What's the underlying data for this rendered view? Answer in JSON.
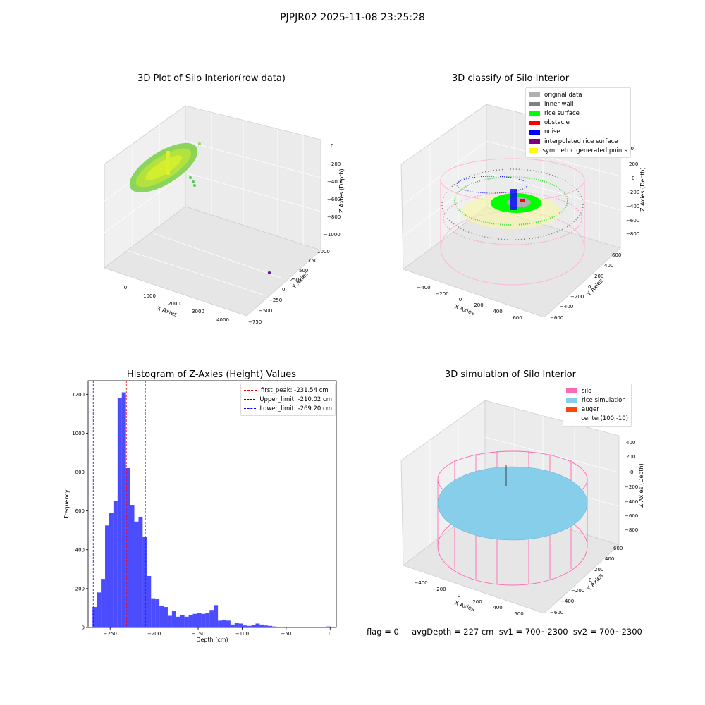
{
  "suptitle": "PJPJR02 2025-11-08 23:25:28",
  "plots": {
    "raw": {
      "title": "3D Plot of Silo Interior(row data)",
      "xlabel": "X Axies",
      "ylabel": "Y Axies",
      "zlabel": "Z Axies (Depth)",
      "xticks": [
        "0",
        "1000",
        "2000",
        "3000",
        "4000"
      ],
      "yticks": [
        "1000",
        "750",
        "500",
        "250",
        "0",
        "−250",
        "−500",
        "−750"
      ],
      "zticks": [
        "0",
        "−200",
        "−400",
        "−600",
        "−800",
        "−1000"
      ]
    },
    "classify": {
      "title": "3D classify of Silo Interior",
      "xlabel": "X Axies",
      "ylabel": "Y Axies",
      "zlabel": "Z Axies (Depth)",
      "xticks": [
        "−400",
        "−200",
        "0",
        "200",
        "400",
        "600"
      ],
      "yticks": [
        "600",
        "400",
        "200",
        "0",
        "−200",
        "−400",
        "−600"
      ],
      "zticks": [
        "200",
        "0",
        "−200",
        "−400",
        "−600",
        "−800"
      ],
      "partial_tick": "00",
      "legend": [
        {
          "label": "original data",
          "color": "#b0b0b0"
        },
        {
          "label": "inner wall",
          "color": "#808080"
        },
        {
          "label": "rice surface",
          "color": "#00ff00"
        },
        {
          "label": "obstacle",
          "color": "#ff0000"
        },
        {
          "label": "noise",
          "color": "#0000ff"
        },
        {
          "label": "interpolated rice surface",
          "color": "#800080"
        },
        {
          "label": "symmetric generated points",
          "color": "#ffff00"
        }
      ]
    },
    "simulation": {
      "title": "3D simulation of Silo Interior",
      "xlabel": "X Axies",
      "ylabel": "Y Axies",
      "zlabel": "Z Axies (Depth)",
      "xticks": [
        "−400",
        "−200",
        "0",
        "200",
        "400",
        "600"
      ],
      "yticks": [
        "600",
        "400",
        "200",
        "0",
        "−200",
        "−400",
        "−600"
      ],
      "zticks": [
        "400",
        "200",
        "0",
        "−200",
        "−400",
        "−600",
        "−800"
      ],
      "legend": [
        {
          "label": "silo",
          "color": "#ff69b4"
        },
        {
          "label": "rice simulation",
          "color": "#87ceeb"
        },
        {
          "label": "auger",
          "color": "#ff4500"
        },
        {
          "label": "center(100,-10)",
          "color": ""
        }
      ]
    }
  },
  "status": {
    "text": "flag = 0     avgDepth = 227 cm  sv1 = 700~2300  sv2 = 700~2300"
  },
  "chart_data": {
    "type": "bar",
    "title": "Histogram of Z-Axies (Height) Values",
    "xlabel": "Depth (cm)",
    "ylabel": "Frequency",
    "xlim": [
      -275,
      7
    ],
    "ylim": [
      0,
      1270
    ],
    "xticks": [
      -250,
      -200,
      -150,
      -100,
      -50,
      0
    ],
    "yticks": [
      0,
      200,
      400,
      600,
      800,
      1000,
      1200
    ],
    "bar_color": "#0000ff",
    "bin_width": 4.75,
    "bins": [
      [
        -270,
        105
      ],
      [
        -265.25,
        180
      ],
      [
        -260.5,
        250
      ],
      [
        -255.75,
        525
      ],
      [
        -251,
        590
      ],
      [
        -246.25,
        650
      ],
      [
        -241.5,
        1180
      ],
      [
        -236.75,
        1210
      ],
      [
        -232,
        820
      ],
      [
        -227.25,
        630
      ],
      [
        -222.5,
        545
      ],
      [
        -217.75,
        570
      ],
      [
        -213,
        465
      ],
      [
        -208.25,
        265
      ],
      [
        -203.5,
        150
      ],
      [
        -198.75,
        145
      ],
      [
        -194,
        110
      ],
      [
        -189.25,
        105
      ],
      [
        -184.5,
        60
      ],
      [
        -179.75,
        85
      ],
      [
        -175,
        55
      ],
      [
        -170.25,
        65
      ],
      [
        -165.5,
        55
      ],
      [
        -160.75,
        65
      ],
      [
        -156,
        70
      ],
      [
        -151.25,
        75
      ],
      [
        -146.5,
        70
      ],
      [
        -141.75,
        75
      ],
      [
        -137,
        90
      ],
      [
        -132.25,
        115
      ],
      [
        -127.5,
        35
      ],
      [
        -122.75,
        40
      ],
      [
        -118,
        35
      ],
      [
        -113.25,
        15
      ],
      [
        -108.5,
        25
      ],
      [
        -103.75,
        20
      ],
      [
        -99,
        10
      ],
      [
        -94.25,
        8
      ],
      [
        -89.5,
        12
      ],
      [
        -84.75,
        20
      ],
      [
        -80,
        15
      ],
      [
        -75.25,
        10
      ],
      [
        -70.5,
        8
      ],
      [
        -65.75,
        5
      ],
      [
        -61,
        3
      ],
      [
        -56.25,
        3
      ],
      [
        -51.5,
        2
      ],
      [
        -46.75,
        2
      ],
      [
        -42,
        1
      ],
      [
        -37.25,
        2
      ],
      [
        -32.5,
        1
      ],
      [
        -27.75,
        0
      ],
      [
        -23,
        1
      ],
      [
        -18.25,
        1
      ],
      [
        -13.5,
        0
      ],
      [
        -8.75,
        0
      ],
      [
        -4,
        5
      ]
    ],
    "vlines": [
      {
        "label": "first_peak: -231.54 cm",
        "x": -231.54,
        "color": "#ff0000"
      },
      {
        "label": "Upper_limit: -210.02 cm",
        "x": -210.02,
        "color": "#0000ff"
      },
      {
        "label": "Lower_limit: -269.20 cm",
        "x": -269.2,
        "color": "#0000ff"
      }
    ]
  }
}
